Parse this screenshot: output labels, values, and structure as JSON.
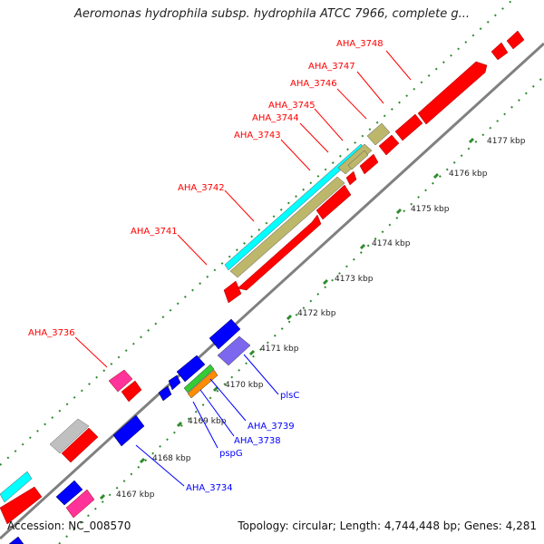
{
  "title": "Aeromonas hydrophila subsp. hydrophila ATCC 7966, complete g...",
  "footer": {
    "accession": "Accession: NC_008570",
    "summary": "Topology: circular; Length: 4,744,448 bp; Genes: 4,281"
  },
  "ticks": [
    "4167 kbp",
    "4168 kbp",
    "4169 kbp",
    "4170 kbp",
    "4171 kbp",
    "4172 kbp",
    "4173 kbp",
    "4174 kbp",
    "4175 kbp",
    "4176 kbp",
    "4177 kbp"
  ],
  "gene_labels_red": [
    "AHA_3748",
    "AHA_3747",
    "AHA_3746",
    "AHA_3745",
    "AHA_3744",
    "AHA_3743",
    "AHA_3742",
    "AHA_3741",
    "AHA_3736"
  ],
  "gene_labels_blue": [
    "plsC",
    "AHA_3739",
    "AHA_3738",
    "pspG",
    "AHA_3734"
  ],
  "colors": {
    "red": "#ff0000",
    "blue": "#0000ff",
    "tan": "#bdb76b",
    "cyan": "#00ffff",
    "pink": "#ff3399",
    "grey": "#c0c0c0",
    "purple": "#7b68ee",
    "green": "#33cc33",
    "orange": "#ff8c00",
    "dots": "#2e8b2e",
    "axis": "#808080"
  }
}
